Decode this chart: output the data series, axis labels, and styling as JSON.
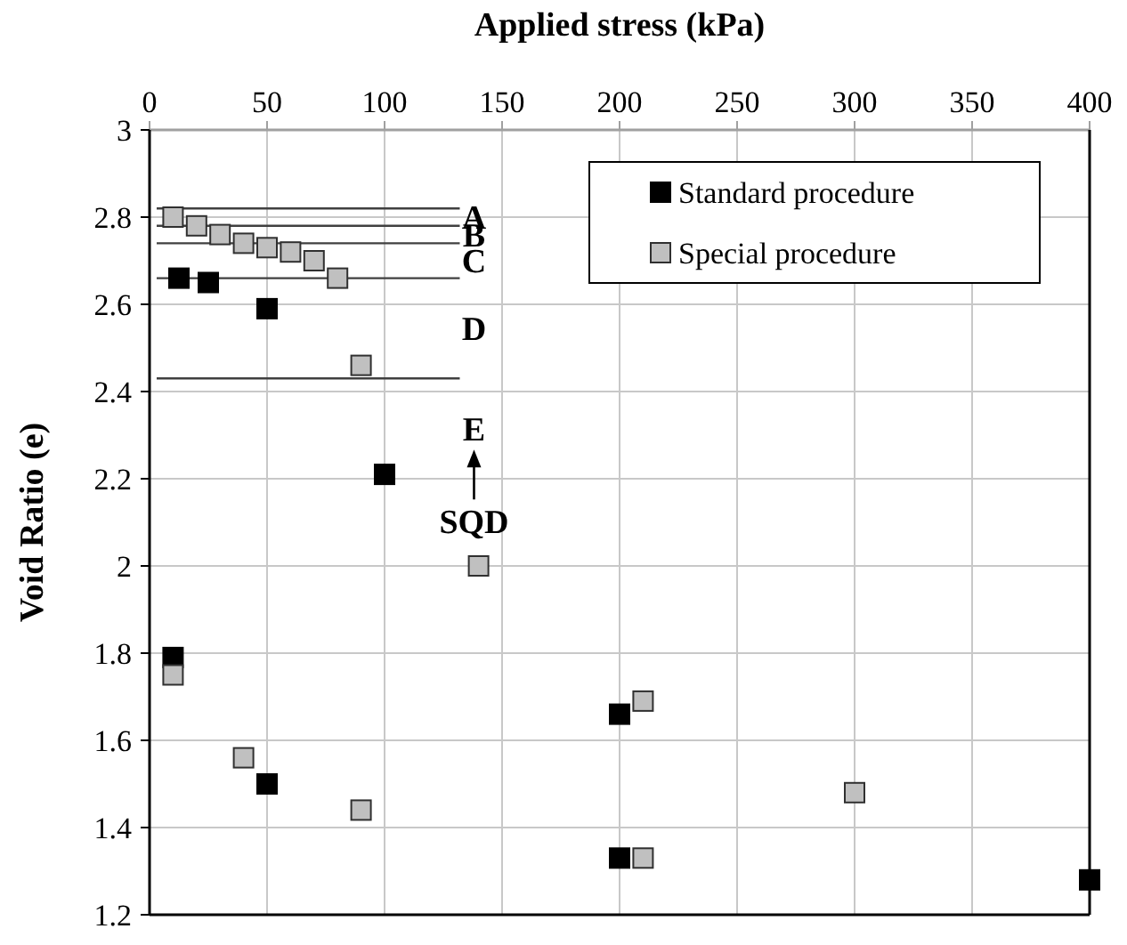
{
  "chart_data": {
    "type": "scatter",
    "xlabel": "Applied stress (kPa)",
    "ylabel": "Void Ratio (e)",
    "xlim": [
      0,
      400
    ],
    "xticks": [
      0,
      50,
      100,
      150,
      200,
      250,
      300,
      350,
      400
    ],
    "ylim": [
      1.2,
      3
    ],
    "yticks": [
      1.2,
      1.4,
      1.6,
      1.8,
      2,
      2.2,
      2.4,
      2.6,
      2.8,
      3
    ],
    "grid": true,
    "legend": "top right",
    "marker": "square",
    "series": [
      {
        "name": "Standard procedure",
        "color": "#000000",
        "x": [
          12.5,
          25,
          50,
          100,
          10,
          50,
          200,
          200,
          400
        ],
        "values": [
          2.66,
          2.65,
          2.59,
          2.21,
          1.79,
          1.5,
          1.66,
          1.33,
          1.28
        ]
      },
      {
        "name": "Special procedure",
        "color": "#c0c0c0",
        "x": [
          10,
          20,
          30,
          40,
          50,
          60,
          70,
          80,
          90,
          140,
          10,
          40,
          90,
          210,
          210,
          300
        ],
        "values": [
          2.8,
          2.78,
          2.76,
          2.74,
          2.73,
          2.72,
          2.7,
          2.66,
          2.46,
          2,
          1.75,
          1.56,
          1.44,
          1.69,
          1.33,
          1.48
        ]
      }
    ],
    "ref_lines": [
      {
        "axis": "y",
        "value": 2.82,
        "color": "#404040"
      },
      {
        "axis": "y",
        "value": 2.78,
        "color": "#404040"
      },
      {
        "axis": "y",
        "value": 2.74,
        "color": "#404040"
      },
      {
        "axis": "y",
        "value": 2.66,
        "color": "#404040"
      },
      {
        "axis": "y",
        "value": 2.43,
        "color": "#404040"
      }
    ],
    "annotations": [
      "A",
      "B",
      "C",
      "D",
      "E",
      "SQD"
    ]
  }
}
